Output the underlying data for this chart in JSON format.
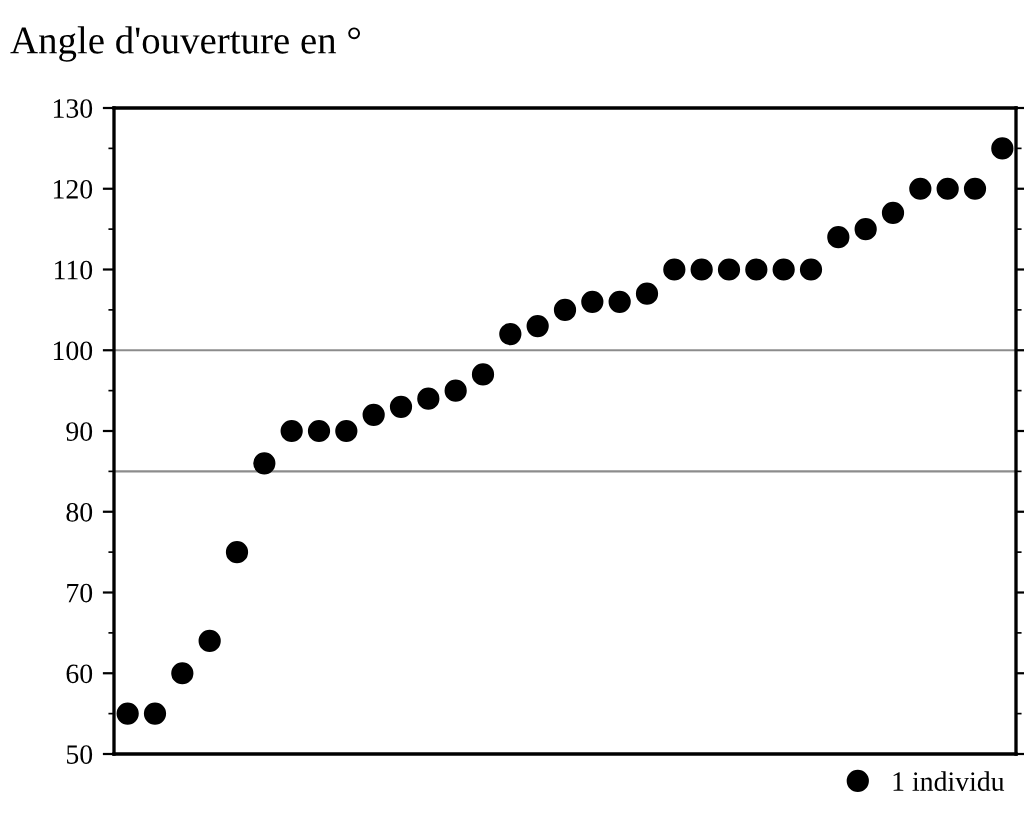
{
  "chart_data": {
    "type": "scatter",
    "title": "Angle d'ouverture en °",
    "categories": [
      null,
      null,
      null,
      null,
      null,
      null,
      null,
      null,
      null,
      null,
      null,
      null,
      null,
      null,
      null,
      null,
      null,
      null,
      null,
      null,
      null,
      null,
      null,
      null,
      null,
      null,
      null,
      null,
      null,
      null,
      null,
      null,
      null
    ],
    "series": [
      {
        "name": "1 individu",
        "color": "#000000",
        "values": [
          55,
          55,
          60,
          64,
          75,
          86,
          90,
          90,
          90,
          92,
          93,
          94,
          95,
          97,
          102,
          103,
          105,
          106,
          106,
          107,
          110,
          110,
          110,
          110,
          110,
          110,
          114,
          115,
          117,
          120,
          120,
          120,
          125
        ]
      }
    ],
    "ylim": [
      50,
      130
    ],
    "yticks": [
      50,
      60,
      70,
      80,
      90,
      100,
      110,
      120,
      130
    ],
    "ref_lines": [
      {
        "axis": "y",
        "value": 100,
        "color": "#8c8c8c"
      },
      {
        "axis": "y",
        "value": 85,
        "color": "#8c8c8c"
      }
    ],
    "marker": "circle",
    "grid": false,
    "legend": "bottom right"
  }
}
